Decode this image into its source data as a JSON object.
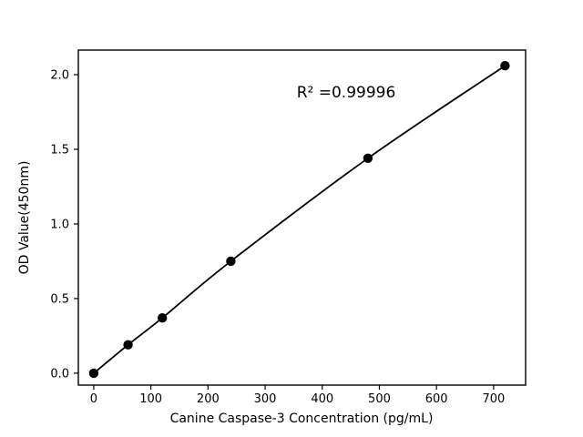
{
  "figure": {
    "background": "#ffffff"
  },
  "chart_data": {
    "type": "line",
    "title": "",
    "xlabel": "Canine Caspase-3 Concentration (pg/mL)",
    "ylabel": "OD Value(450nm)",
    "annotation": "R² =0.99996",
    "x": [
      0,
      60,
      120,
      240,
      480,
      720
    ],
    "y": [
      0.0,
      0.19,
      0.37,
      0.75,
      1.44,
      2.06
    ],
    "x_tick_labels": [
      "0",
      "100",
      "200",
      "300",
      "400",
      "500",
      "600",
      "700"
    ],
    "x_tick_values": [
      0,
      100,
      200,
      300,
      400,
      500,
      600,
      700
    ],
    "y_tick_labels": [
      "0.0",
      "0.5",
      "1.0",
      "1.5",
      "2.0"
    ],
    "y_tick_values": [
      0.0,
      0.5,
      1.0,
      1.5,
      2.0
    ],
    "xlim": [
      -27,
      756
    ],
    "ylim": [
      -0.08,
      2.165
    ],
    "line_color": "#000000",
    "marker": "circle",
    "marker_color": "#000000",
    "grid": false,
    "legend_position": "none"
  }
}
